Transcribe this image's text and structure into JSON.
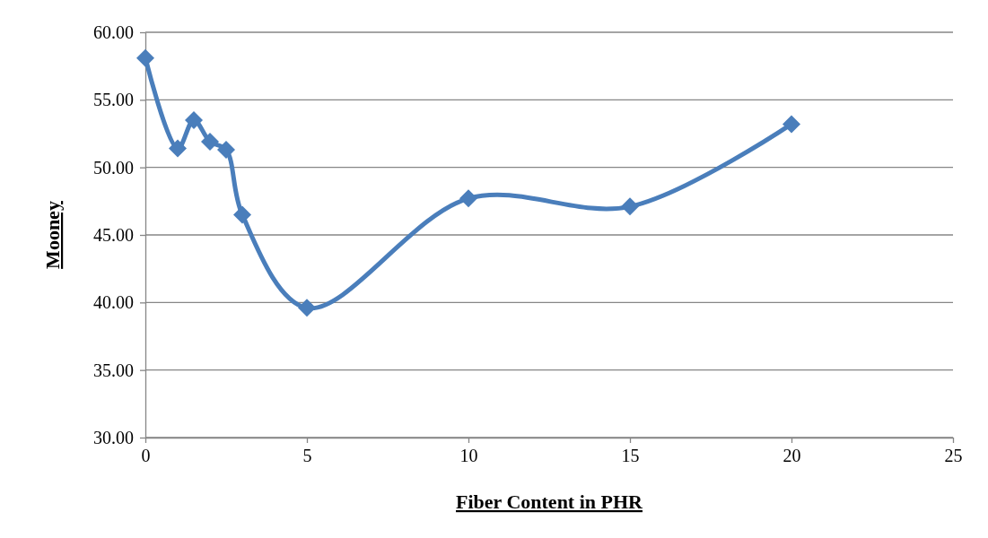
{
  "chart_data": {
    "type": "line",
    "xlabel": "Fiber Content in PHR",
    "ylabel": "Mooney",
    "x": [
      0,
      1,
      1.5,
      2,
      2.5,
      3,
      5,
      10,
      15,
      20
    ],
    "series": [
      {
        "color": "#4a7ebb",
        "values": [
          58.1,
          51.4,
          53.5,
          51.9,
          51.3,
          46.5,
          39.6,
          47.7,
          47.1,
          53.2
        ]
      }
    ],
    "xlim": [
      0,
      25
    ],
    "xticks": [
      0,
      5,
      10,
      15,
      20,
      25
    ],
    "ylim": [
      30,
      60
    ],
    "yticks": [
      {
        "value": 30,
        "label": "30.00"
      },
      {
        "value": 35,
        "label": "35.00"
      },
      {
        "value": 40,
        "label": "40.00"
      },
      {
        "value": 45,
        "label": "45.00"
      },
      {
        "value": 50,
        "label": "50.00"
      },
      {
        "value": 55,
        "label": "55.00"
      },
      {
        "value": 60,
        "label": "60.00"
      }
    ],
    "grid": "y",
    "marker": "diamond",
    "line_style": "solid"
  }
}
